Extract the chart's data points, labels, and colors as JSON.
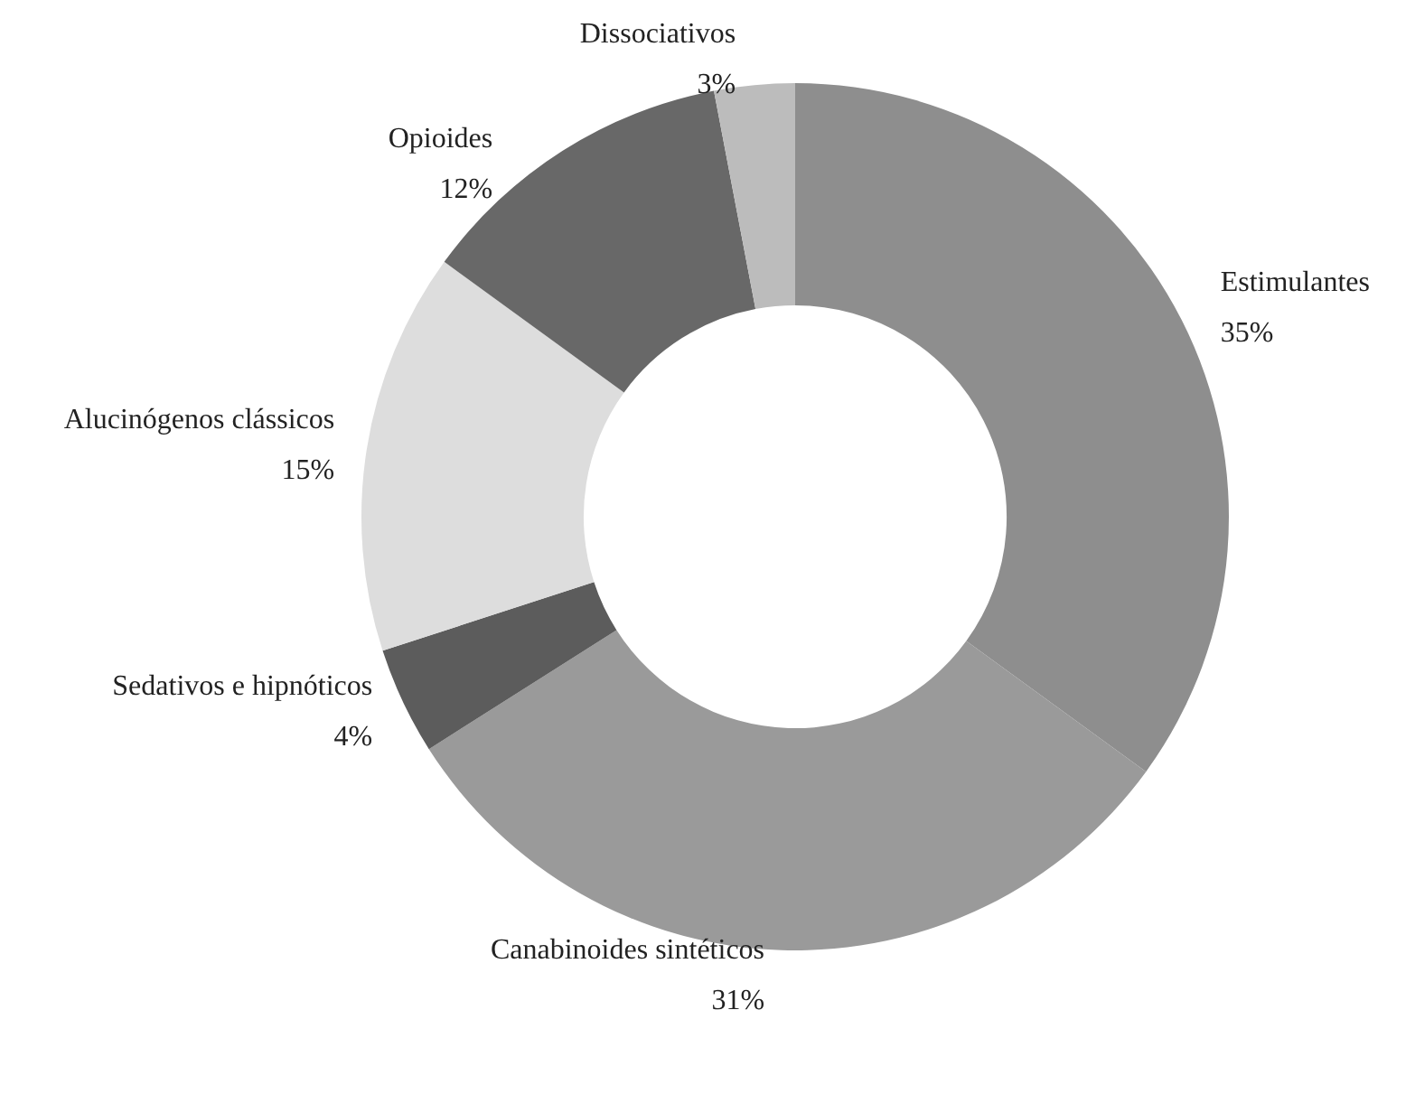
{
  "chart_data": {
    "type": "donut",
    "categories": [
      "Estimulantes",
      "Canabinoides sintéticos",
      "Sedativos e hipnóticos",
      "Alucinógenos clássicos",
      "Opioides",
      "Dissociativos"
    ],
    "values": [
      35,
      31,
      4,
      15,
      12,
      3
    ],
    "value_labels": [
      "35%",
      "31%",
      "4%",
      "15%",
      "12%",
      "3%"
    ],
    "colors": [
      "#8e8e8e",
      "#9a9a9a",
      "#5c5c5c",
      "#dddddd",
      "#686868",
      "#bcbcbc"
    ],
    "data_labels": true,
    "legend": false
  }
}
